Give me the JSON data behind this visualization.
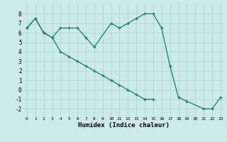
{
  "xlabel": "Humidex (Indice chaleur)",
  "background_color": "#cdeaea",
  "grid_color": "#b0d5d5",
  "line_color": "#1a7a6e",
  "xlim": [
    -0.5,
    23.5
  ],
  "ylim": [
    -2.8,
    9.0
  ],
  "xticks": [
    0,
    1,
    2,
    3,
    4,
    5,
    6,
    7,
    8,
    9,
    10,
    11,
    12,
    13,
    14,
    15,
    16,
    17,
    18,
    19,
    20,
    21,
    22,
    23
  ],
  "yticks": [
    -2,
    -1,
    0,
    1,
    2,
    3,
    4,
    5,
    6,
    7,
    8
  ],
  "curve1_x": [
    0,
    1,
    2,
    3,
    4,
    5,
    6,
    7,
    8,
    10,
    11,
    12,
    13,
    14,
    15,
    16,
    17,
    18,
    19,
    21,
    22,
    23
  ],
  "curve1_y": [
    6.5,
    7.5,
    6.0,
    5.5,
    6.5,
    6.5,
    6.5,
    5.5,
    4.5,
    7.0,
    6.5,
    7.0,
    7.5,
    8.0,
    8.0,
    6.5,
    2.5,
    -0.8,
    -1.2,
    -2.0,
    -2.0,
    -0.8
  ],
  "curve2_x": [
    0,
    1,
    2,
    3,
    4,
    5,
    6,
    7,
    8,
    9,
    10,
    11,
    12,
    13,
    14,
    15
  ],
  "curve2_y": [
    6.5,
    7.5,
    6.0,
    5.5,
    4.0,
    3.5,
    3.0,
    2.5,
    2.0,
    1.5,
    1.0,
    0.5,
    0.0,
    -0.5,
    -1.0,
    -1.0
  ]
}
